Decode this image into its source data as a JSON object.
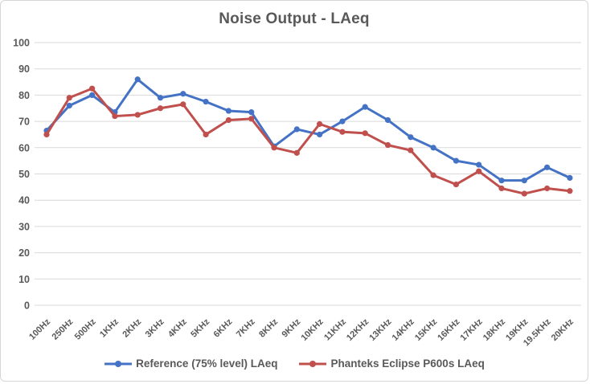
{
  "chart": {
    "title": "Noise Output - LAeq"
  },
  "chart_data": {
    "type": "line",
    "title": "Noise Output - LAeq",
    "xlabel": "",
    "ylabel": "",
    "ylim": [
      0,
      100
    ],
    "y_ticks": [
      0,
      10,
      20,
      30,
      40,
      50,
      60,
      70,
      80,
      90,
      100
    ],
    "grid": "horizontal",
    "legend_position": "bottom",
    "text_color": "#595959",
    "gridline_color": "#d9d9d9",
    "categories": [
      "100Hz",
      "250Hz",
      "500Hz",
      "1KHz",
      "2KHz",
      "3KHz",
      "4KHz",
      "5KHz",
      "6KHz",
      "7KHz",
      "8KHz",
      "9KHz",
      "10KHz",
      "11KHz",
      "12KHz",
      "13KHz",
      "14KHz",
      "15KHz",
      "16KHz",
      "17KHz",
      "18KHz",
      "19KHz",
      "19.5KHz",
      "20KHz"
    ],
    "series": [
      {
        "name": "Reference (75% level) LAeq",
        "color": "#4472C4",
        "values": [
          66.5,
          76,
          80,
          73.5,
          86,
          79,
          80.5,
          77.5,
          74,
          73.5,
          60.5,
          67,
          65,
          70,
          75.5,
          70.5,
          64,
          60,
          55,
          53.5,
          47.5,
          47.5,
          52.5,
          48.5
        ]
      },
      {
        "name": "Phanteks Eclipse P600s LAeq",
        "color": "#C0504D",
        "values": [
          65,
          79,
          82.5,
          72,
          72.5,
          75,
          76.5,
          65,
          70.5,
          71,
          60,
          58,
          69,
          66,
          65.5,
          61,
          59,
          49.5,
          46,
          51,
          44.5,
          42.5,
          44.5,
          43.5
        ]
      }
    ]
  }
}
